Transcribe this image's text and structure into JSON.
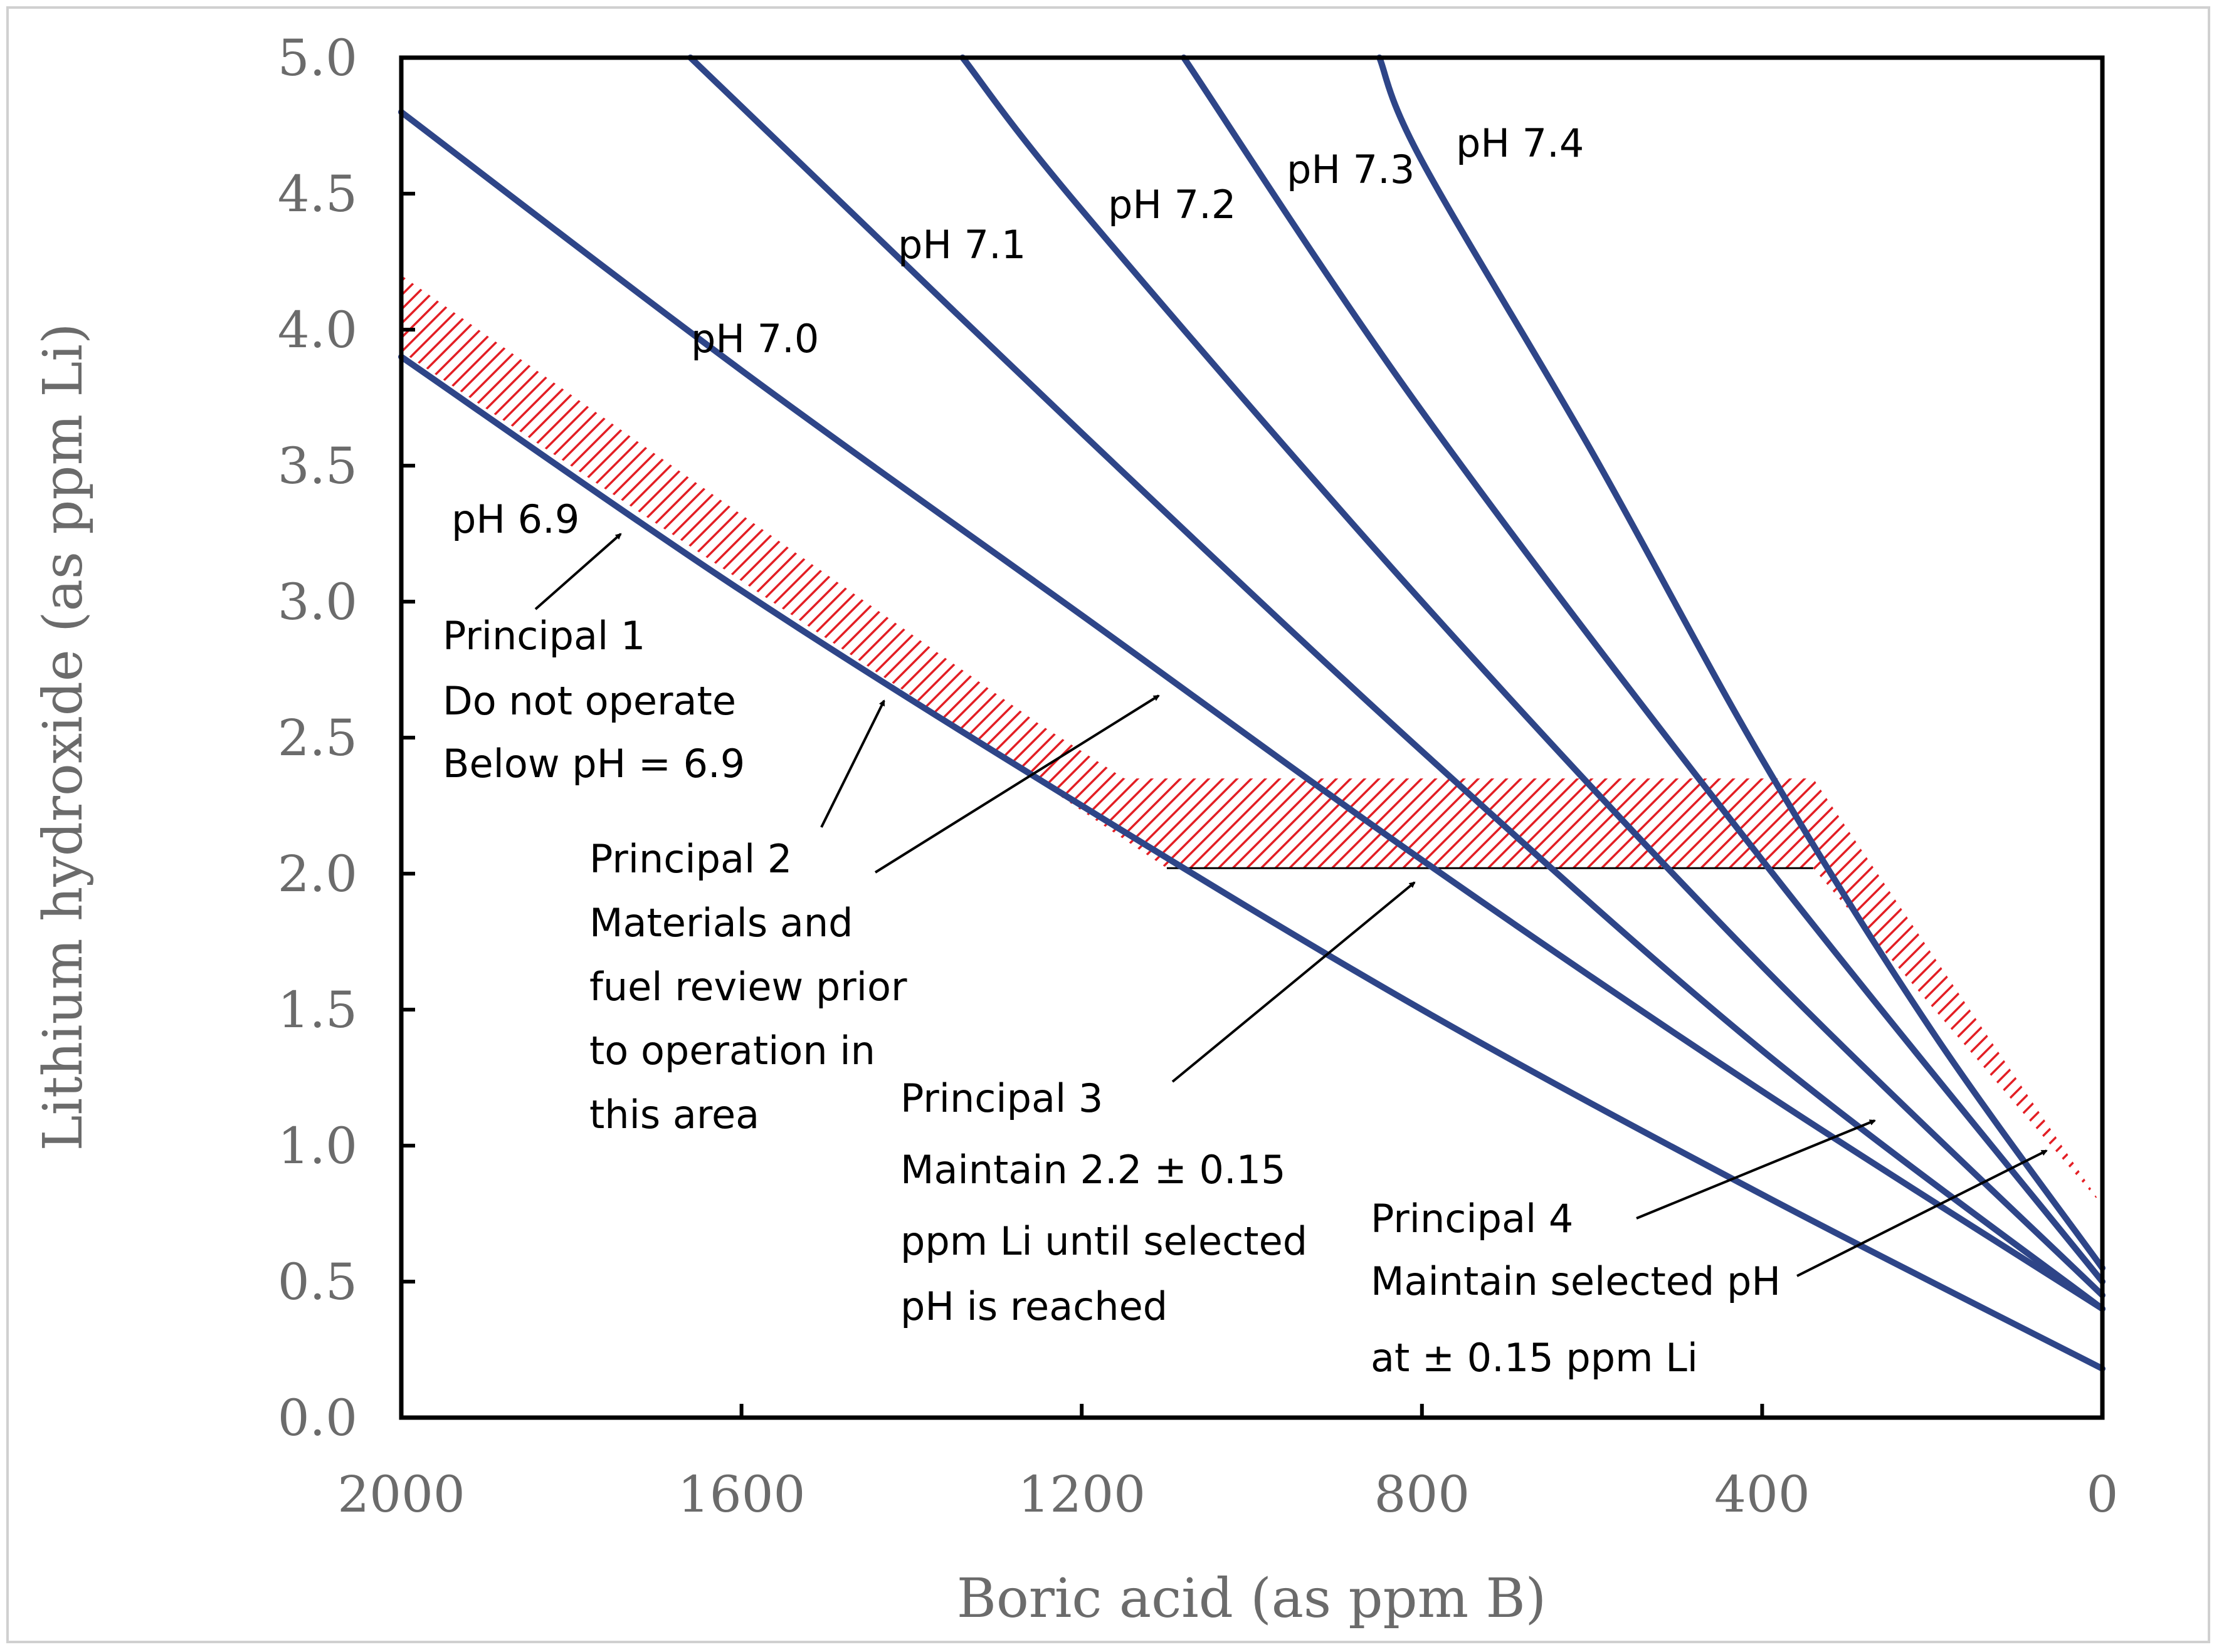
{
  "chart_data": {
    "type": "line",
    "xlabel": "Boric acid (as ppm B)",
    "ylabel": "Lithium hydroxide (as ppm Li)",
    "xlim": [
      2000,
      0
    ],
    "ylim": [
      0,
      5.0
    ],
    "x_ticks": [
      2000,
      1600,
      1200,
      800,
      400,
      0
    ],
    "x_tick_labels": [
      "2000",
      "1600",
      "1200",
      "800",
      "400",
      "0"
    ],
    "y_ticks": [
      0,
      0.5,
      1.0,
      1.5,
      2.0,
      2.5,
      3.0,
      3.5,
      4.0,
      4.5,
      5.0
    ],
    "y_tick_labels": [
      "0.0",
      "0.5",
      "1.0",
      "1.5",
      "2.0",
      "2.5",
      "3.0",
      "3.5",
      "4.0",
      "4.5",
      "5.0"
    ],
    "series_color": "#2e4588",
    "band_color": "#e31e24",
    "series": [
      {
        "name": "pH 6.9",
        "points": [
          [
            2000,
            3.9
          ],
          [
            1600,
            3.04
          ],
          [
            1200,
            2.25
          ],
          [
            800,
            1.5
          ],
          [
            400,
            0.82
          ],
          [
            0,
            0.18
          ]
        ]
      },
      {
        "name": "pH 7.0",
        "points": [
          [
            2000,
            4.8
          ],
          [
            1600,
            3.85
          ],
          [
            1200,
            2.95
          ],
          [
            800,
            2.05
          ],
          [
            400,
            1.2
          ],
          [
            0,
            0.4
          ]
        ]
      },
      {
        "name": "pH 7.1",
        "points": [
          [
            1660,
            5.0
          ],
          [
            1600,
            4.82
          ],
          [
            1200,
            3.62
          ],
          [
            800,
            2.45
          ],
          [
            400,
            1.35
          ],
          [
            0,
            0.4
          ]
        ]
      },
      {
        "name": "pH 7.2",
        "points": [
          [
            1340,
            5.0
          ],
          [
            1200,
            4.44
          ],
          [
            800,
            3.0
          ],
          [
            400,
            1.66
          ],
          [
            0,
            0.45
          ]
        ]
      },
      {
        "name": "pH 7.3",
        "points": [
          [
            1080,
            5.0
          ],
          [
            800,
            3.7
          ],
          [
            400,
            2.05
          ],
          [
            0,
            0.5
          ]
        ]
      },
      {
        "name": "pH 7.4",
        "points": [
          [
            850,
            5.0
          ],
          [
            800,
            4.62
          ],
          [
            600,
            3.55
          ],
          [
            400,
            2.42
          ],
          [
            200,
            1.42
          ],
          [
            0,
            0.55
          ]
        ]
      }
    ],
    "curve_labels": [
      "pH 6.9",
      "pH 7.0",
      "pH 7.1",
      "pH 7.2",
      "pH 7.3",
      "pH 7.4"
    ],
    "band": {
      "upper": [
        [
          2000,
          4.2
        ],
        [
          1250,
          2.55
        ],
        [
          1150,
          2.35
        ],
        [
          340,
          2.35
        ],
        [
          0,
          0.78
        ]
      ],
      "lower": [
        [
          0,
          0.78
        ],
        [
          340,
          2.02
        ],
        [
          1100,
          2.02
        ],
        [
          2000,
          3.92
        ]
      ]
    },
    "annotations": {
      "principal1": [
        "Principal 1",
        "Do not operate",
        "Below pH = 6.9"
      ],
      "principal2": [
        "Principal 2",
        "Materials and",
        "fuel review prior",
        "to operation in",
        "this area"
      ],
      "principal3": [
        "Principal 3",
        "Maintain 2.2 ± 0.15",
        "ppm Li until selected",
        "pH is reached"
      ],
      "principal4": [
        "Principal 4",
        "Maintain selected pH",
        "at ± 0.15 ppm Li"
      ]
    }
  }
}
